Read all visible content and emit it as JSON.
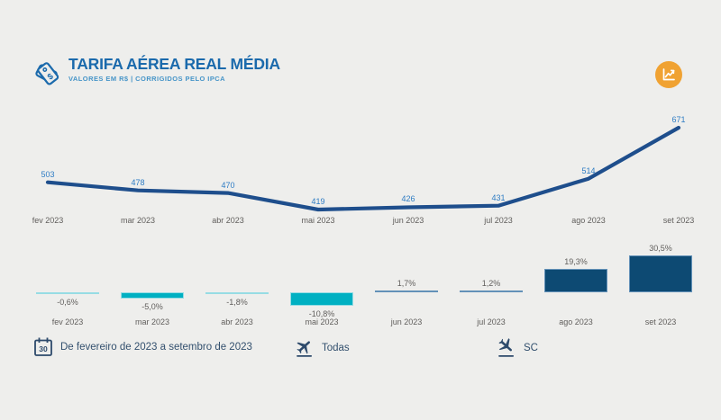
{
  "header": {
    "title": "TARIFA AÉREA REAL MÉDIA",
    "subtitle": "VALORES EM R$  |  CORRIGIDOS PELO IPCA"
  },
  "colors": {
    "background": "#eeeeec",
    "title_blue": "#1b6aac",
    "subtitle_blue": "#4795c8",
    "line_navy": "#1e4e8c",
    "value_label_blue": "#2e7cc4",
    "axis_gray": "#605e5c",
    "bar_positive": "#0d4a73",
    "bar_positive_border": "#6391b8",
    "bar_negative": "#00b0c2",
    "bar_negative_border": "#97dce4",
    "badge_orange": "#f0a232",
    "filter_navy": "#2d4a6b"
  },
  "chart_data": [
    {
      "type": "line",
      "title": "",
      "categories": [
        "fev 2023",
        "mar 2023",
        "abr 2023",
        "mai 2023",
        "jun 2023",
        "jul 2023",
        "ago 2023",
        "set 2023"
      ],
      "values": [
        503,
        478,
        470,
        419,
        426,
        431,
        514,
        671
      ],
      "ylim": [
        400,
        700
      ],
      "grid": false,
      "legend": "none",
      "data_labels": true
    },
    {
      "type": "bar",
      "title": "",
      "categories": [
        "fev 2023",
        "mar 2023",
        "abr 2023",
        "mai 2023",
        "jun 2023",
        "jul 2023",
        "ago 2023",
        "set 2023"
      ],
      "values": [
        -0.6,
        -5.0,
        -1.8,
        -10.8,
        1.7,
        1.2,
        19.3,
        30.5
      ],
      "labels": [
        "-0,6%",
        "-5,0%",
        "-1,8%",
        "-10,8%",
        "1,7%",
        "1,2%",
        "19,3%",
        "30,5%"
      ],
      "grid": false,
      "legend": "none",
      "data_labels": true
    }
  ],
  "filters": {
    "date_range": "De fevereiro de 2023 a setembro de 2023",
    "airline": "Todas",
    "uf": "SC"
  }
}
